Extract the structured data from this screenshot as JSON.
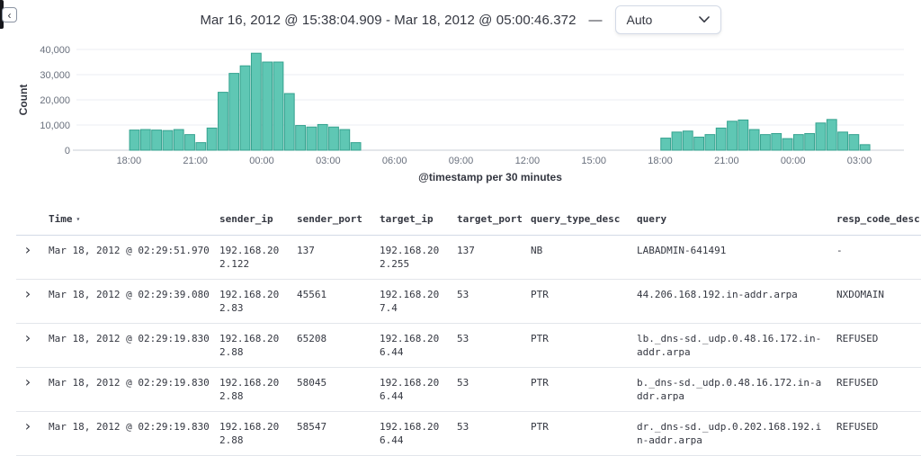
{
  "header": {
    "time_range": "Mar 16, 2012 @ 15:38:04.909 - Mar 18, 2012 @ 05:00:46.372",
    "separator": "—",
    "interval_select": "Auto"
  },
  "chart_data": {
    "type": "bar",
    "title": "",
    "xlabel": "@timestamp per 30 minutes",
    "ylabel": "Count",
    "ylim": [
      0,
      40000
    ],
    "yticks": [
      {
        "value": 0,
        "label": "0"
      },
      {
        "value": 10000,
        "label": "10,000"
      },
      {
        "value": 20000,
        "label": "20,000"
      },
      {
        "value": 30000,
        "label": "30,000"
      },
      {
        "value": 40000,
        "label": "40,000"
      }
    ],
    "x_tick_labels": [
      "18:00",
      "21:00",
      "00:00",
      "03:00",
      "06:00",
      "09:00",
      "12:00",
      "15:00",
      "18:00",
      "21:00",
      "00:00",
      "03:00"
    ],
    "time_domain_hours": 37.38,
    "first_tick_offset_hours": 2.37,
    "tick_interval_hours": 3,
    "bucket_hours": 0.5,
    "colors": {
      "bar_fill": "#5fc7b4",
      "bar_stroke": "#35a28f"
    },
    "buckets": [
      {
        "offset_h": 2.37,
        "count": 8000
      },
      {
        "offset_h": 2.87,
        "count": 8200
      },
      {
        "offset_h": 3.37,
        "count": 8000
      },
      {
        "offset_h": 3.87,
        "count": 7800
      },
      {
        "offset_h": 4.37,
        "count": 8200
      },
      {
        "offset_h": 4.87,
        "count": 6200
      },
      {
        "offset_h": 5.37,
        "count": 3000
      },
      {
        "offset_h": 5.87,
        "count": 8800
      },
      {
        "offset_h": 6.37,
        "count": 23000
      },
      {
        "offset_h": 6.87,
        "count": 30500
      },
      {
        "offset_h": 7.37,
        "count": 33500
      },
      {
        "offset_h": 7.87,
        "count": 38500
      },
      {
        "offset_h": 8.37,
        "count": 35000
      },
      {
        "offset_h": 8.87,
        "count": 35000
      },
      {
        "offset_h": 9.37,
        "count": 22500
      },
      {
        "offset_h": 9.87,
        "count": 9800
      },
      {
        "offset_h": 10.37,
        "count": 9200
      },
      {
        "offset_h": 10.87,
        "count": 10200
      },
      {
        "offset_h": 11.37,
        "count": 9200
      },
      {
        "offset_h": 11.87,
        "count": 8200
      },
      {
        "offset_h": 12.37,
        "count": 3000
      },
      {
        "offset_h": 26.37,
        "count": 4800
      },
      {
        "offset_h": 26.87,
        "count": 7200
      },
      {
        "offset_h": 27.37,
        "count": 7600
      },
      {
        "offset_h": 27.87,
        "count": 5200
      },
      {
        "offset_h": 28.37,
        "count": 6200
      },
      {
        "offset_h": 28.87,
        "count": 8800
      },
      {
        "offset_h": 29.37,
        "count": 11500
      },
      {
        "offset_h": 29.87,
        "count": 12000
      },
      {
        "offset_h": 30.37,
        "count": 8200
      },
      {
        "offset_h": 30.87,
        "count": 6200
      },
      {
        "offset_h": 31.37,
        "count": 6600
      },
      {
        "offset_h": 31.87,
        "count": 4600
      },
      {
        "offset_h": 32.37,
        "count": 6200
      },
      {
        "offset_h": 32.87,
        "count": 6600
      },
      {
        "offset_h": 33.37,
        "count": 10800
      },
      {
        "offset_h": 33.87,
        "count": 12200
      },
      {
        "offset_h": 34.37,
        "count": 7200
      },
      {
        "offset_h": 34.87,
        "count": 6200
      },
      {
        "offset_h": 35.37,
        "count": 2200
      }
    ]
  },
  "table": {
    "columns": [
      {
        "label": "Time"
      },
      {
        "label": "sender_ip"
      },
      {
        "label": "sender_port"
      },
      {
        "label": "target_ip"
      },
      {
        "label": "target_port"
      },
      {
        "label": "query_type_desc"
      },
      {
        "label": "query"
      },
      {
        "label": "resp_code_desc"
      }
    ],
    "rows": [
      {
        "time": "Mar 18, 2012 @ 02:29:51.970",
        "sender_ip": "192.168.202.122",
        "sender_port": "137",
        "target_ip": "192.168.202.255",
        "target_port": "137",
        "query_type_desc": "NB",
        "query": "LABADMIN-641491",
        "resp_code_desc": "-"
      },
      {
        "time": "Mar 18, 2012 @ 02:29:39.080",
        "sender_ip": "192.168.202.83",
        "sender_port": "45561",
        "target_ip": "192.168.207.4",
        "target_port": "53",
        "query_type_desc": "PTR",
        "query": "44.206.168.192.in-addr.arpa",
        "resp_code_desc": "NXDOMAIN"
      },
      {
        "time": "Mar 18, 2012 @ 02:29:19.830",
        "sender_ip": "192.168.202.88",
        "sender_port": "65208",
        "target_ip": "192.168.206.44",
        "target_port": "53",
        "query_type_desc": "PTR",
        "query": "lb._dns-sd._udp.0.48.16.172.in-addr.arpa",
        "resp_code_desc": "REFUSED"
      },
      {
        "time": "Mar 18, 2012 @ 02:29:19.830",
        "sender_ip": "192.168.202.88",
        "sender_port": "58045",
        "target_ip": "192.168.206.44",
        "target_port": "53",
        "query_type_desc": "PTR",
        "query": "b._dns-sd._udp.0.48.16.172.in-addr.arpa",
        "resp_code_desc": "REFUSED"
      },
      {
        "time": "Mar 18, 2012 @ 02:29:19.830",
        "sender_ip": "192.168.202.88",
        "sender_port": "58547",
        "target_ip": "192.168.206.44",
        "target_port": "53",
        "query_type_desc": "PTR",
        "query": "dr._dns-sd._udp.0.202.168.192.in-addr.arpa",
        "resp_code_desc": "REFUSED"
      }
    ]
  }
}
